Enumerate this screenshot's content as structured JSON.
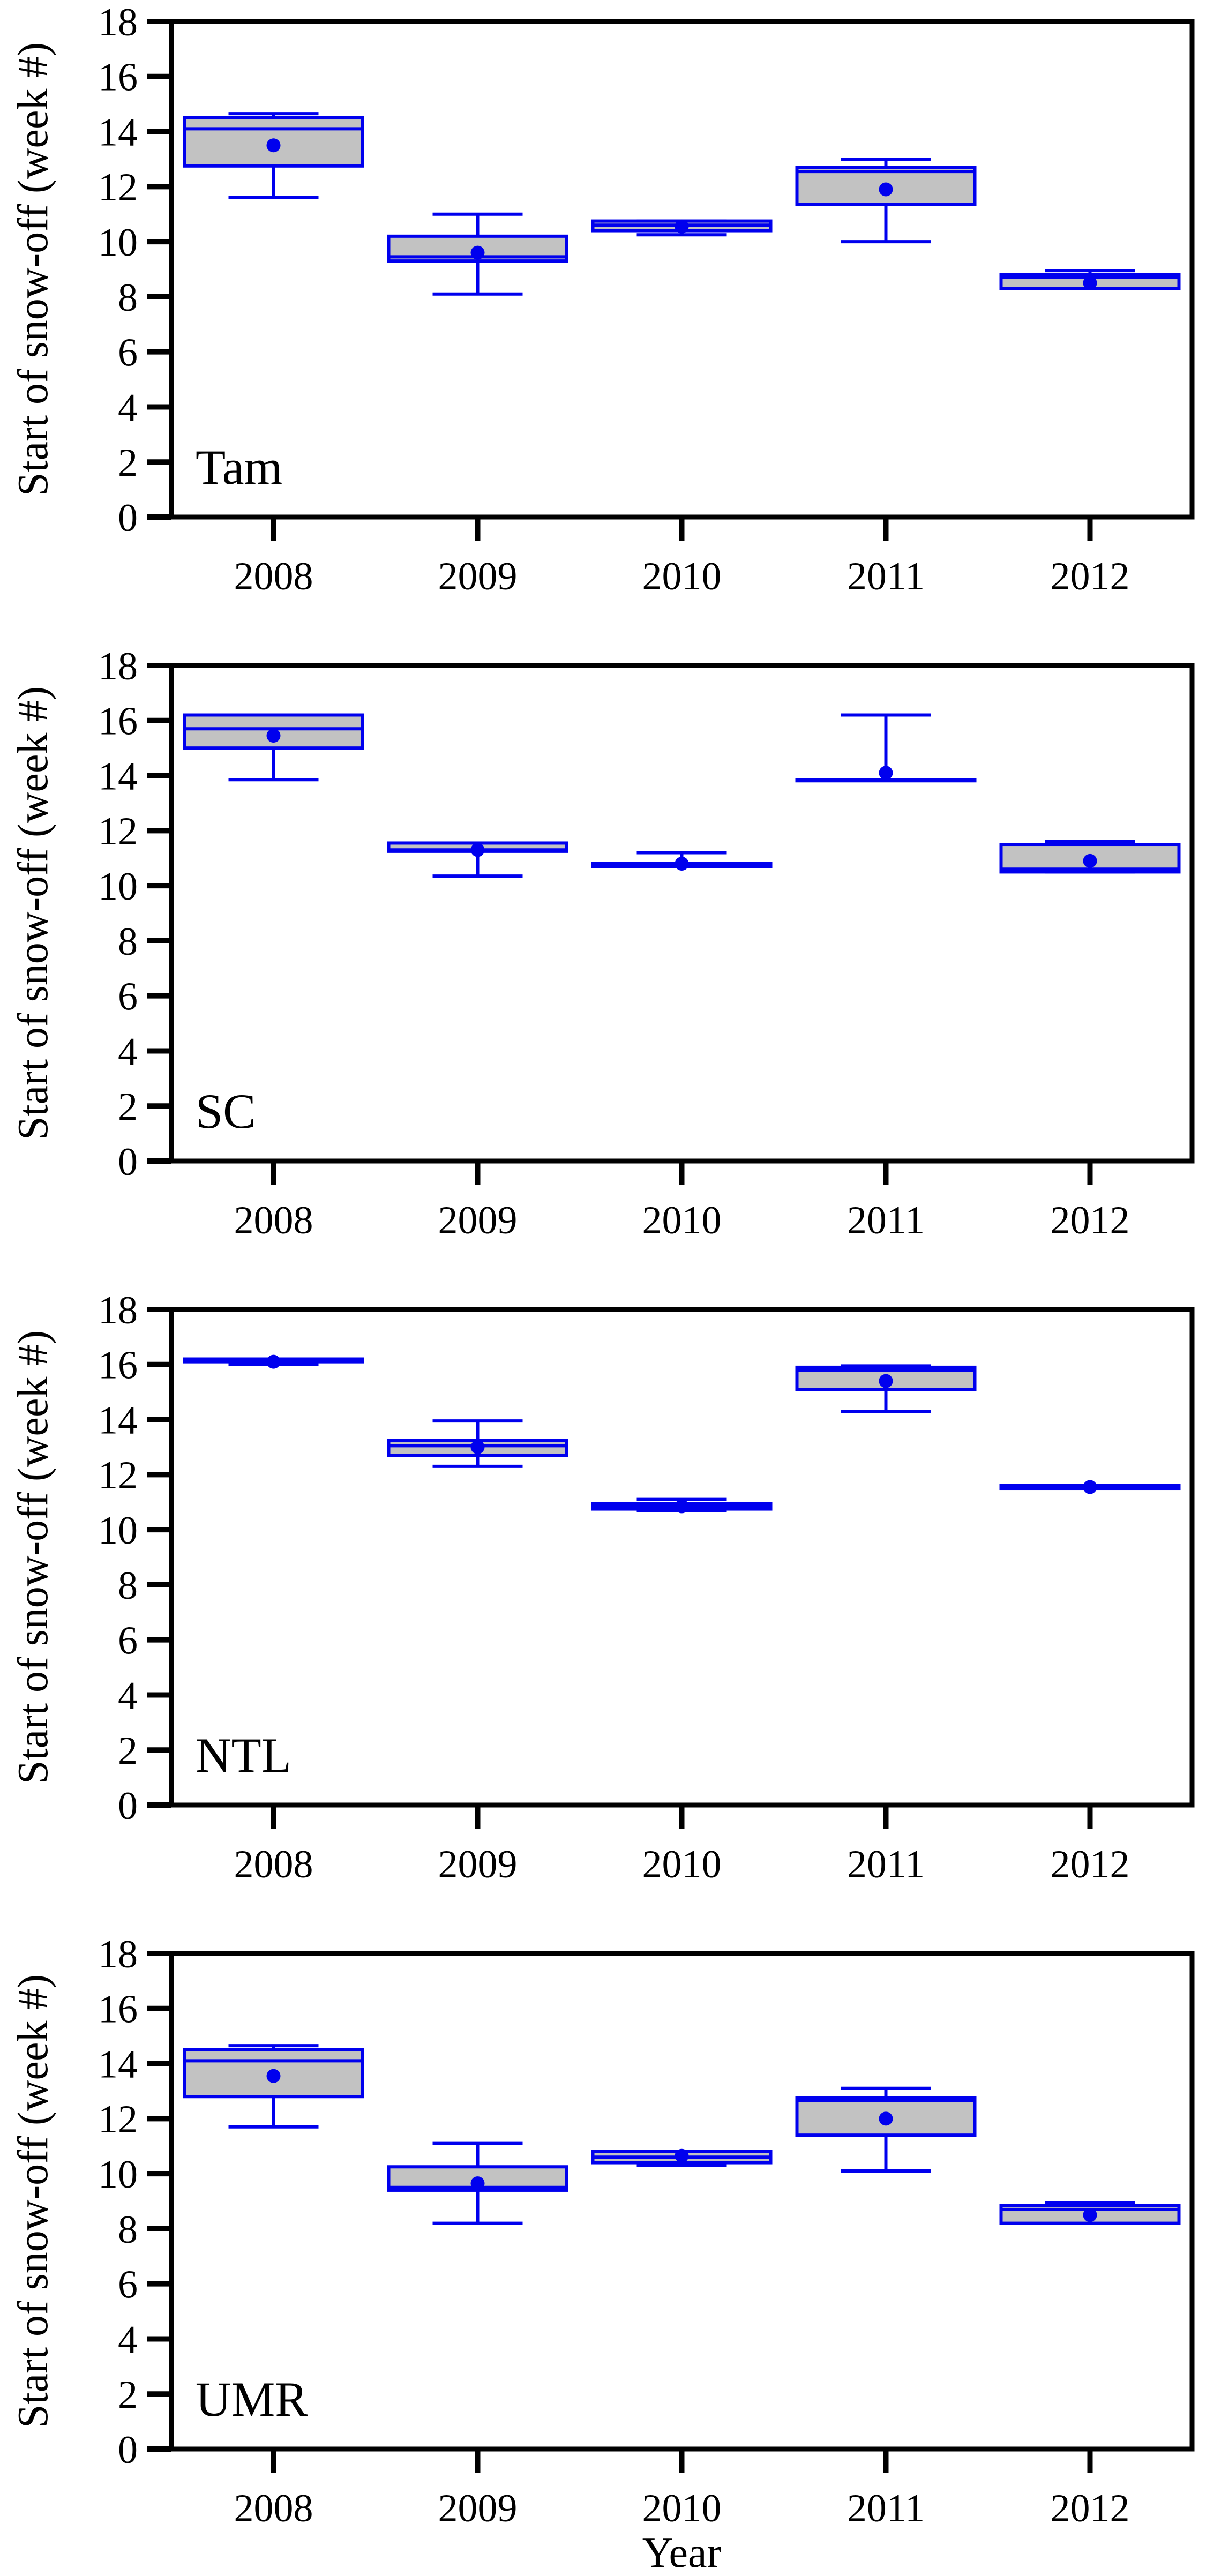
{
  "figure": {
    "ylabel": "Start of snow-off (week #)",
    "xlabel": "Year",
    "colors": {
      "box_stroke": "#0000ee",
      "box_fill": "#c2c2c2",
      "mean_dot": "#0000ee",
      "axis": "#000000",
      "background": "#ffffff"
    }
  },
  "chart_data": [
    {
      "type": "boxplot",
      "site": "Tam",
      "ylabel": "Start of snow-off (week #)",
      "xlabel": "",
      "ylim": [
        0,
        18
      ],
      "yticks": [
        0,
        2,
        4,
        6,
        8,
        10,
        12,
        14,
        16,
        18
      ],
      "grid": false,
      "categories": [
        "2008",
        "2009",
        "2010",
        "2011",
        "2012"
      ],
      "series": [
        {
          "year": "2008",
          "whisker_low": 11.6,
          "q1": 12.75,
          "median": 14.1,
          "q3": 14.5,
          "whisker_high": 14.65,
          "mean": 13.5
        },
        {
          "year": "2009",
          "whisker_low": 8.1,
          "q1": 9.3,
          "median": 9.45,
          "q3": 10.2,
          "whisker_high": 11.0,
          "mean": 9.6
        },
        {
          "year": "2010",
          "whisker_low": 10.25,
          "q1": 10.4,
          "median": 10.6,
          "q3": 10.75,
          "whisker_high": 10.75,
          "mean": 10.55
        },
        {
          "year": "2011",
          "whisker_low": 10.0,
          "q1": 11.35,
          "median": 12.55,
          "q3": 12.7,
          "whisker_high": 13.0,
          "mean": 11.9
        },
        {
          "year": "2012",
          "whisker_low": 8.3,
          "q1": 8.3,
          "median": 8.7,
          "q3": 8.8,
          "whisker_high": 8.95,
          "mean": 8.5
        }
      ]
    },
    {
      "type": "boxplot",
      "site": "SC",
      "ylabel": "Start of snow-off (week #)",
      "xlabel": "",
      "ylim": [
        0,
        18
      ],
      "yticks": [
        0,
        2,
        4,
        6,
        8,
        10,
        12,
        14,
        16,
        18
      ],
      "grid": false,
      "categories": [
        "2008",
        "2009",
        "2010",
        "2011",
        "2012"
      ],
      "series": [
        {
          "year": "2008",
          "whisker_low": 13.85,
          "q1": 15.0,
          "median": 15.7,
          "q3": 16.2,
          "whisker_high": 16.2,
          "mean": 15.45
        },
        {
          "year": "2009",
          "whisker_low": 10.35,
          "q1": 11.25,
          "median": 11.3,
          "q3": 11.55,
          "whisker_high": 11.55,
          "mean": 11.3
        },
        {
          "year": "2010",
          "whisker_low": 10.7,
          "q1": 10.7,
          "median": 10.75,
          "q3": 10.8,
          "whisker_high": 11.2,
          "mean": 10.8
        },
        {
          "year": "2011",
          "whisker_low": 13.85,
          "q1": 13.85,
          "median": 13.85,
          "q3": 13.85,
          "whisker_high": 16.2,
          "mean": 14.1
        },
        {
          "year": "2012",
          "whisker_low": 10.5,
          "q1": 10.5,
          "median": 10.6,
          "q3": 11.5,
          "whisker_high": 11.6,
          "mean": 10.9
        }
      ]
    },
    {
      "type": "boxplot",
      "site": "NTL",
      "ylabel": "Start of snow-off (week #)",
      "xlabel": "",
      "ylim": [
        0,
        18
      ],
      "yticks": [
        0,
        2,
        4,
        6,
        8,
        10,
        12,
        14,
        16,
        18
      ],
      "grid": false,
      "categories": [
        "2008",
        "2009",
        "2010",
        "2011",
        "2012"
      ],
      "series": [
        {
          "year": "2008",
          "whisker_low": 16.0,
          "q1": 16.1,
          "median": 16.15,
          "q3": 16.2,
          "whisker_high": 16.2,
          "mean": 16.1
        },
        {
          "year": "2009",
          "whisker_low": 12.3,
          "q1": 12.7,
          "median": 13.05,
          "q3": 13.25,
          "whisker_high": 13.95,
          "mean": 13.0
        },
        {
          "year": "2010",
          "whisker_low": 10.7,
          "q1": 10.75,
          "median": 10.85,
          "q3": 10.95,
          "whisker_high": 11.1,
          "mean": 10.85
        },
        {
          "year": "2011",
          "whisker_low": 14.3,
          "q1": 15.1,
          "median": 15.8,
          "q3": 15.9,
          "whisker_high": 15.95,
          "mean": 15.4
        },
        {
          "year": "2012",
          "whisker_low": 11.55,
          "q1": 11.5,
          "median": 11.55,
          "q3": 11.6,
          "whisker_high": 11.55,
          "mean": 11.55
        }
      ]
    },
    {
      "type": "boxplot",
      "site": "UMR",
      "ylabel": "Start of snow-off (week #)",
      "xlabel": "Year",
      "ylim": [
        0,
        18
      ],
      "yticks": [
        0,
        2,
        4,
        6,
        8,
        10,
        12,
        14,
        16,
        18
      ],
      "grid": false,
      "categories": [
        "2008",
        "2009",
        "2010",
        "2011",
        "2012"
      ],
      "series": [
        {
          "year": "2008",
          "whisker_low": 11.7,
          "q1": 12.8,
          "median": 14.1,
          "q3": 14.5,
          "whisker_high": 14.65,
          "mean": 13.55
        },
        {
          "year": "2009",
          "whisker_low": 8.2,
          "q1": 9.4,
          "median": 9.5,
          "q3": 10.25,
          "whisker_high": 11.1,
          "mean": 9.65
        },
        {
          "year": "2010",
          "whisker_low": 10.3,
          "q1": 10.4,
          "median": 10.6,
          "q3": 10.8,
          "whisker_high": 10.8,
          "mean": 10.65
        },
        {
          "year": "2011",
          "whisker_low": 10.1,
          "q1": 11.4,
          "median": 12.65,
          "q3": 12.75,
          "whisker_high": 13.1,
          "mean": 12.0
        },
        {
          "year": "2012",
          "whisker_low": 8.2,
          "q1": 8.2,
          "median": 8.7,
          "q3": 8.85,
          "whisker_high": 8.95,
          "mean": 8.5
        }
      ]
    }
  ]
}
